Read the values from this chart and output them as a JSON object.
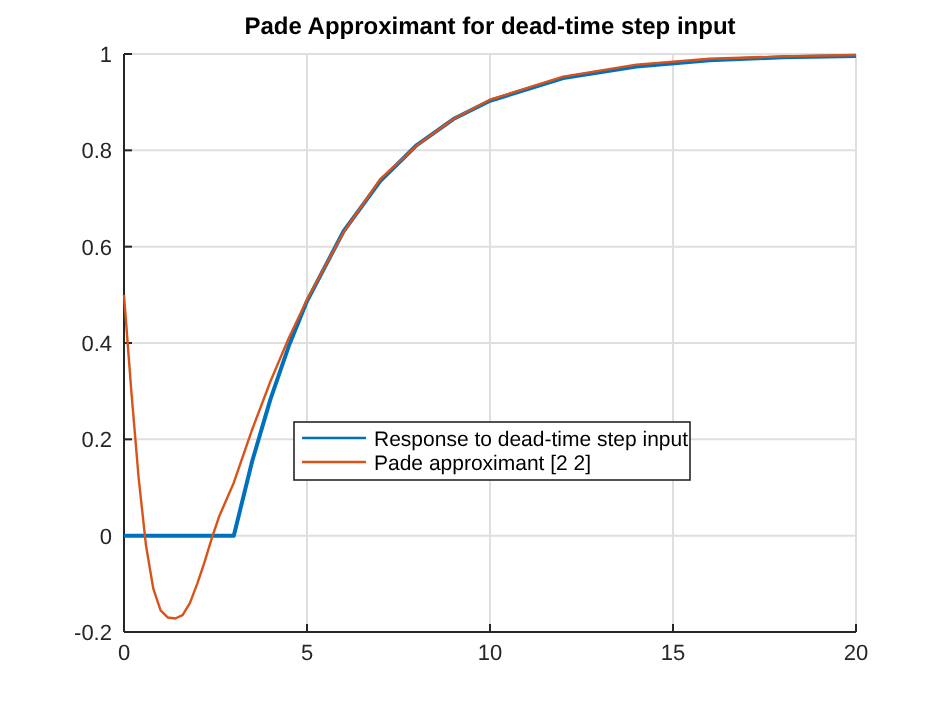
{
  "chart_data": {
    "type": "line",
    "title": "Pade Approximant for dead-time step input",
    "xlim": [
      0,
      20
    ],
    "xticks": [
      0,
      5,
      10,
      15,
      20
    ],
    "ylim": [
      -0.2,
      1
    ],
    "yticks": [
      -0.2,
      0,
      0.2,
      0.4,
      0.6,
      0.8,
      1
    ],
    "grid": true,
    "legend": "center",
    "line_style": "solid",
    "marker": "none",
    "series": [
      {
        "name": "Response to dead-time step input",
        "color": "#0072bd",
        "x": [
          0,
          3,
          3.5,
          4,
          4.5,
          5,
          6,
          7,
          8,
          9,
          10,
          12,
          14,
          16,
          18,
          20
        ],
        "values": [
          0,
          0,
          0.154,
          0.283,
          0.393,
          0.487,
          0.632,
          0.736,
          0.811,
          0.865,
          0.903,
          0.95,
          0.974,
          0.987,
          0.993,
          0.996
        ]
      },
      {
        "name": "Pade approximant [2 2]",
        "color": "#d95319",
        "x": [
          0,
          0.2,
          0.4,
          0.6,
          0.8,
          1,
          1.2,
          1.4,
          1.6,
          1.8,
          2,
          2.2,
          2.4,
          2.6,
          3,
          3.5,
          4,
          4.5,
          5,
          6,
          7,
          8,
          9,
          10,
          12,
          14,
          16,
          18,
          20
        ],
        "values": [
          0.5,
          0.3,
          0.12,
          -0.02,
          -0.11,
          -0.155,
          -0.17,
          -0.172,
          -0.165,
          -0.14,
          -0.1,
          -0.055,
          -0.005,
          0.04,
          0.11,
          0.22,
          0.32,
          0.41,
          0.49,
          0.63,
          0.74,
          0.81,
          0.865,
          0.905,
          0.953,
          0.978,
          0.99,
          0.995,
          0.998
        ]
      }
    ]
  }
}
